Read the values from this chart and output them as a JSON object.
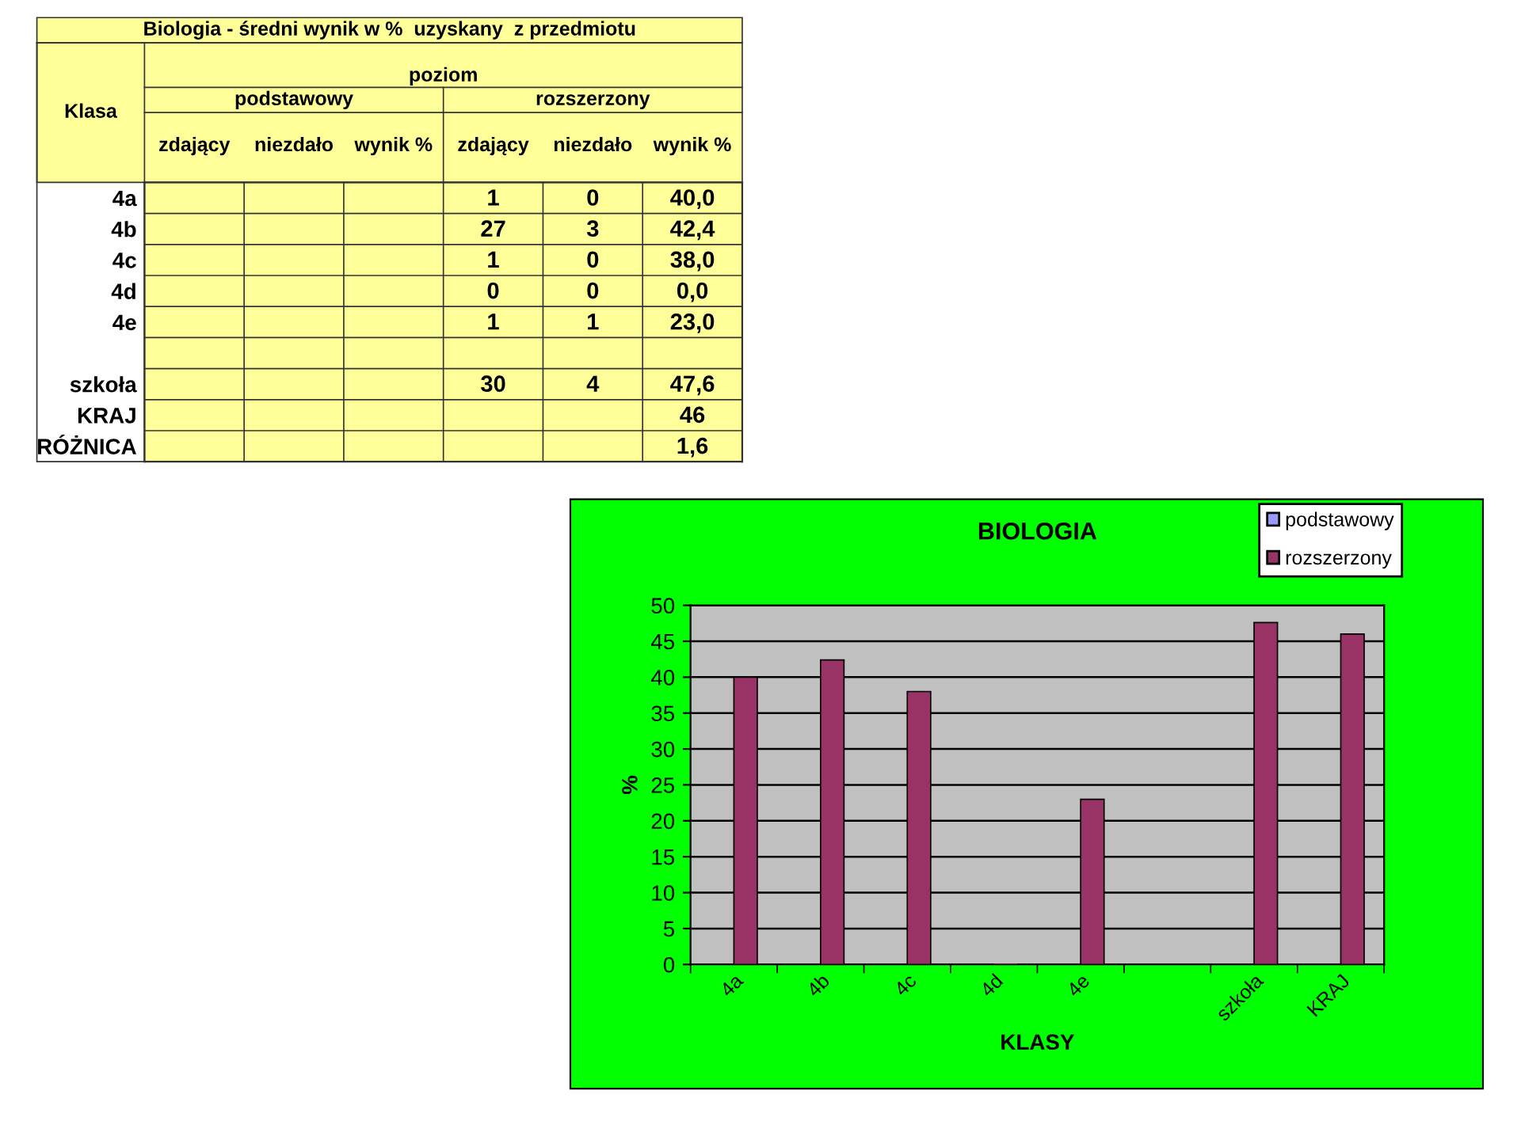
{
  "chart_data": [
    {
      "type": "other",
      "title": "Biologia - średni wynik w %  uzyskany  z przedmiotu",
      "categories": [
        "zdający",
        "niezdało",
        "wynik %",
        "zdający",
        "niezdało",
        "wynik %"
      ],
      "y_categories": [
        "4a",
        "4b",
        "4c",
        "4d",
        "4e",
        null,
        "szkoła",
        "KRAJ",
        "RÓŻNICA"
      ],
      "cell_labels": [
        [
          null,
          null,
          null,
          "1",
          "0",
          "40,0"
        ],
        [
          null,
          null,
          null,
          "27",
          "3",
          "42,4"
        ],
        [
          null,
          null,
          null,
          "1",
          "0",
          "38,0"
        ],
        [
          null,
          null,
          null,
          "0",
          "0",
          "0,0"
        ],
        [
          null,
          null,
          null,
          "1",
          "1",
          "23,0"
        ],
        [
          null,
          null,
          null,
          null,
          null,
          null
        ],
        [
          null,
          null,
          null,
          "30",
          "4",
          "47,6"
        ],
        [
          null,
          null,
          null,
          null,
          null,
          "46"
        ],
        [
          null,
          null,
          null,
          null,
          null,
          "1,6"
        ]
      ],
      "annotations": [
        "Klasa",
        "poziom",
        "podstawowy",
        "rozszerzony"
      ]
    },
    {
      "type": "bar",
      "title": "BIOLOGIA",
      "xlabel": "KLASY",
      "ylabel": "%",
      "categories": [
        "4a",
        "4b",
        "4c",
        "4d",
        "4e",
        null,
        "szkoła",
        "KRAJ"
      ],
      "series": [
        {
          "name": "podstawowy",
          "color": "#9999ff",
          "values": [
            null,
            null,
            null,
            null,
            null,
            null,
            null,
            null
          ]
        },
        {
          "name": "rozszerzony",
          "color": "#993366",
          "values": [
            40.0,
            42.4,
            38.0,
            0.0,
            23.0,
            null,
            47.6,
            46
          ]
        }
      ],
      "ylim": [
        0,
        50
      ],
      "yticks": [
        0,
        5,
        10,
        15,
        20,
        25,
        30,
        35,
        40,
        45,
        50
      ],
      "grid": "y",
      "legend": "top right"
    }
  ]
}
